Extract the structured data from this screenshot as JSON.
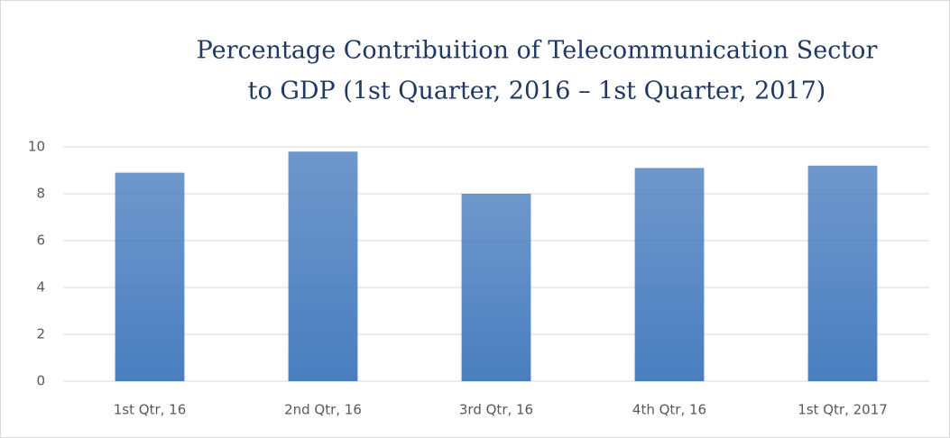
{
  "chart_data": {
    "type": "bar",
    "title": [
      "Percentage Contribuition of Telecommunication Sector",
      "to GDP (1st Quarter, 2016 – 1st Quarter, 2017)"
    ],
    "categories": [
      "1st Qtr, 16",
      "2nd Qtr, 16",
      "3rd Qtr, 16",
      "4th Qtr, 16",
      "1st Qtr, 2017"
    ],
    "values": [
      8.9,
      9.8,
      8.0,
      9.1,
      9.2
    ],
    "color": "#4a7ebf",
    "ylim": [
      0,
      10
    ],
    "yticks": [
      0,
      2,
      4,
      6,
      8,
      10
    ],
    "grid": true
  }
}
